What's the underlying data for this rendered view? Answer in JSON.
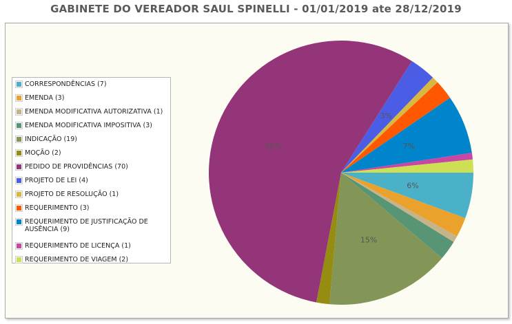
{
  "chart_data": {
    "type": "pie",
    "title": "GABINETE DO VEREADOR SAUL SPINELLI - 01/01/2019 ate 28/12/2019",
    "legend_position": "left",
    "slices": [
      {
        "label": "CORRESPONDÊNCIAS (7)",
        "value": 7,
        "color": "#4bb1c8",
        "percent_label": "6%"
      },
      {
        "label": "EMENDA (3)",
        "value": 3,
        "color": "#eaa22c",
        "percent_label": ""
      },
      {
        "label": "EMENDA MODIFICATIVA AUTORIZATIVA (1)",
        "value": 1,
        "color": "#c5b48a",
        "percent_label": ""
      },
      {
        "label": "EMENDA MODIFICATIVA IMPOSITIVA (3)",
        "value": 3,
        "color": "#579575",
        "percent_label": ""
      },
      {
        "label": "INDICAÇÃO (19)",
        "value": 19,
        "color": "#839557",
        "percent_label": "15%"
      },
      {
        "label": "MOÇÃO (2)",
        "value": 2,
        "color": "#958c12",
        "percent_label": ""
      },
      {
        "label": "PEDIDO DE PROVIDÊNCIAS (70)",
        "value": 70,
        "color": "#953579",
        "percent_label": "56%"
      },
      {
        "label": "PROJETO DE LEI (4)",
        "value": 4,
        "color": "#4b5de4",
        "percent_label": "3%"
      },
      {
        "label": "PROJETO DE RESOLUÇÃO (1)",
        "value": 1,
        "color": "#d8b83f",
        "percent_label": ""
      },
      {
        "label": "REQUERIMENTO (3)",
        "value": 3,
        "color": "#ff5800",
        "percent_label": ""
      },
      {
        "label": "REQUERIMENTO DE JUSTIFICAÇÃO DE AUSÊNCIA (9)",
        "value": 9,
        "color": "#0085cc",
        "percent_label": "7%"
      },
      {
        "label": "REQUERIMENTO DE LICENÇA (1)",
        "value": 1,
        "color": "#c747a3",
        "percent_label": ""
      },
      {
        "label": "REQUERIMENTO DE VIAGEM (2)",
        "value": 2,
        "color": "#cddf54",
        "percent_label": ""
      }
    ]
  }
}
